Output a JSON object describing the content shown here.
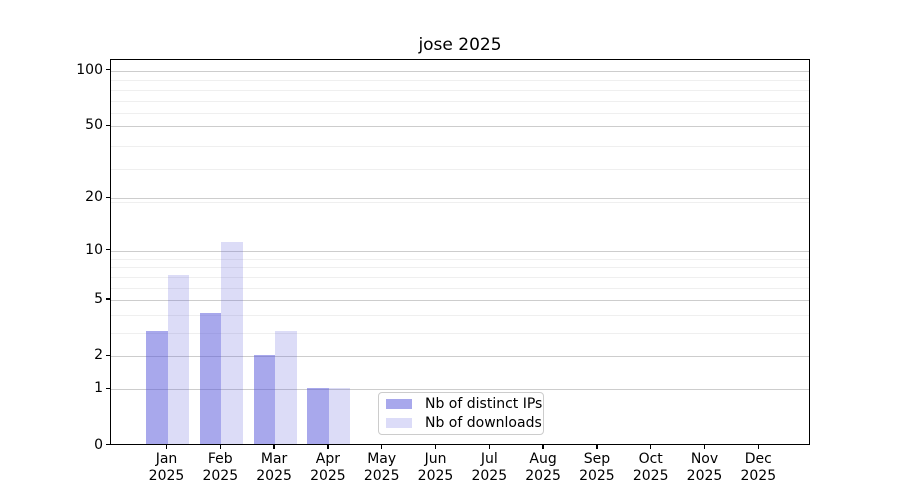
{
  "figure": {
    "title": "jose 2025"
  },
  "chart_data": {
    "type": "bar",
    "title": "jose 2025",
    "categories": [
      "Jan",
      "Feb",
      "Mar",
      "Apr",
      "May",
      "Jun",
      "Jul",
      "Aug",
      "Sep",
      "Oct",
      "Nov",
      "Dec"
    ],
    "year_label": "2025",
    "series": [
      {
        "name": "Nb of distinct IPs",
        "values": [
          3,
          4,
          2,
          1,
          0,
          0,
          0,
          0,
          0,
          0,
          0,
          0
        ],
        "color": "rgba(81,81,217,0.5)",
        "color_flat": "#a8a8ec"
      },
      {
        "name": "Nb of downloads",
        "values": [
          7,
          11,
          3,
          1,
          0,
          0,
          0,
          0,
          0,
          0,
          0,
          0
        ],
        "color": "rgba(81,81,217,0.2)",
        "color_flat": "#dcdcf8"
      }
    ],
    "xlabel": "",
    "ylabel": "",
    "yscale": "log1p",
    "ylim": [
      0,
      115
    ],
    "yticks": [
      0,
      1,
      2,
      5,
      10,
      20,
      50,
      100
    ],
    "yticks_minor": [
      3,
      4,
      6,
      7,
      8,
      9,
      19,
      29,
      39,
      59,
      69,
      79,
      89
    ],
    "grid": "both",
    "grid_major_color": "#cdcdcd",
    "grid_minor_color": "#efefef",
    "axis_color": "#000000",
    "legend": {
      "position": "inside-bottom-center",
      "entries": [
        "Nb of distinct IPs",
        "Nb of downloads"
      ]
    }
  }
}
